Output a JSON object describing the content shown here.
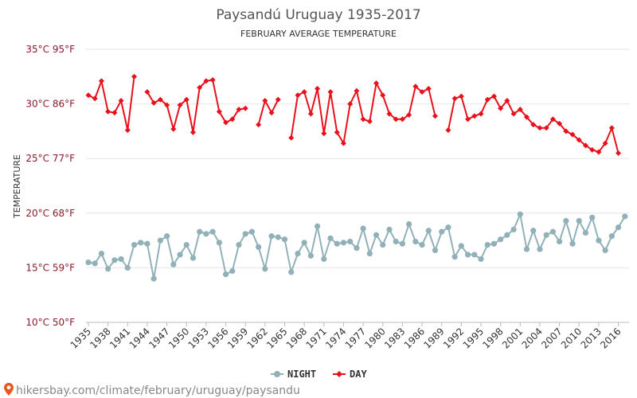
{
  "chart_data": {
    "type": "line",
    "title": "Paysandú Uruguay 1935-2017",
    "subtitle": "FEBRUARY AVERAGE TEMPERATURE",
    "ylabel": "TEMPERATURE",
    "ylim": [
      10,
      35
    ],
    "yticks": [
      {
        "value": 10,
        "label": "10°C 50°F"
      },
      {
        "value": 15,
        "label": "15°C 59°F"
      },
      {
        "value": 20,
        "label": "20°C 68°F"
      },
      {
        "value": 25,
        "label": "25°C 77°F"
      },
      {
        "value": 30,
        "label": "30°C 86°F"
      },
      {
        "value": 35,
        "label": "35°C 95°F"
      }
    ],
    "xlim": [
      1935,
      2017
    ],
    "xtick_labels": [
      "1935",
      "1938",
      "1941",
      "1944",
      "1947",
      "1950",
      "1953",
      "1956",
      "1959",
      "1962",
      "1965",
      "1968",
      "1971",
      "1974",
      "1977",
      "1980",
      "1983",
      "1986",
      "1989",
      "1992",
      "1995",
      "1998",
      "2001",
      "2004",
      "2007",
      "2010",
      "2013",
      "2016"
    ],
    "grid": "horizontal",
    "legend_position": "bottom",
    "x": [
      1935,
      1936,
      1937,
      1938,
      1939,
      1940,
      1941,
      1942,
      1943,
      1944,
      1945,
      1946,
      1947,
      1948,
      1949,
      1950,
      1951,
      1952,
      1953,
      1954,
      1955,
      1956,
      1957,
      1958,
      1959,
      1960,
      1961,
      1962,
      1963,
      1964,
      1965,
      1966,
      1967,
      1968,
      1969,
      1970,
      1971,
      1972,
      1973,
      1974,
      1975,
      1976,
      1977,
      1978,
      1979,
      1980,
      1981,
      1982,
      1983,
      1984,
      1985,
      1986,
      1987,
      1988,
      1989,
      1990,
      1991,
      1992,
      1993,
      1994,
      1995,
      1996,
      1997,
      1998,
      1999,
      2000,
      2001,
      2002,
      2003,
      2004,
      2005,
      2006,
      2007,
      2008,
      2009,
      2010,
      2011,
      2012,
      2013,
      2014,
      2015,
      2016,
      2017
    ],
    "series": [
      {
        "name": "NIGHT",
        "color": "#91b1b8",
        "values": [
          15.5,
          15.4,
          16.3,
          14.9,
          15.7,
          15.8,
          15.0,
          17.1,
          17.3,
          17.2,
          14.0,
          17.5,
          17.9,
          15.3,
          16.2,
          17.1,
          15.9,
          18.3,
          18.1,
          18.3,
          17.3,
          14.4,
          14.7,
          17.1,
          18.1,
          18.3,
          16.9,
          14.9,
          17.9,
          17.8,
          17.6,
          14.6,
          16.3,
          17.3,
          16.1,
          18.8,
          15.8,
          17.7,
          17.2,
          17.3,
          17.4,
          16.8,
          18.6,
          16.3,
          18.0,
          17.1,
          18.5,
          17.4,
          17.2,
          19.0,
          17.4,
          17.1,
          18.4,
          16.6,
          18.3,
          18.7,
          16.0,
          17.0,
          16.2,
          16.2,
          15.8,
          17.1,
          17.2,
          17.6,
          18.0,
          18.5,
          19.9,
          16.7,
          18.4,
          16.7,
          18.0,
          18.3,
          17.4,
          19.3,
          17.2,
          19.3,
          18.2,
          19.6,
          17.5,
          16.6,
          17.9,
          18.7,
          19.7
        ]
      },
      {
        "name": "DAY",
        "color": "#e8111b",
        "values": [
          30.8,
          30.5,
          32.1,
          29.3,
          29.2,
          30.3,
          27.6,
          32.5,
          null,
          31.1,
          30.1,
          30.4,
          29.9,
          27.7,
          29.9,
          30.4,
          27.4,
          31.5,
          32.1,
          32.2,
          29.3,
          28.3,
          28.6,
          29.5,
          29.6,
          null,
          28.1,
          30.3,
          29.2,
          30.4,
          null,
          26.9,
          30.8,
          31.1,
          29.1,
          31.4,
          27.3,
          31.1,
          27.4,
          26.4,
          30.0,
          31.2,
          28.6,
          28.4,
          31.9,
          30.8,
          29.1,
          28.6,
          28.6,
          29.0,
          31.6,
          31.1,
          31.4,
          28.9,
          null,
          27.6,
          30.5,
          30.7,
          28.6,
          28.9,
          29.1,
          30.4,
          30.7,
          29.6,
          30.3,
          29.1,
          29.5,
          28.8,
          28.1,
          27.8,
          27.8,
          28.6,
          28.2,
          27.5,
          27.2,
          26.7,
          26.2,
          25.8,
          25.6,
          26.4,
          27.8,
          25.5,
          null
        ]
      }
    ]
  },
  "footer": {
    "text": "hikersbay.com/climate/february/uruguay/paysandu",
    "pin_color": "#e8571e"
  }
}
